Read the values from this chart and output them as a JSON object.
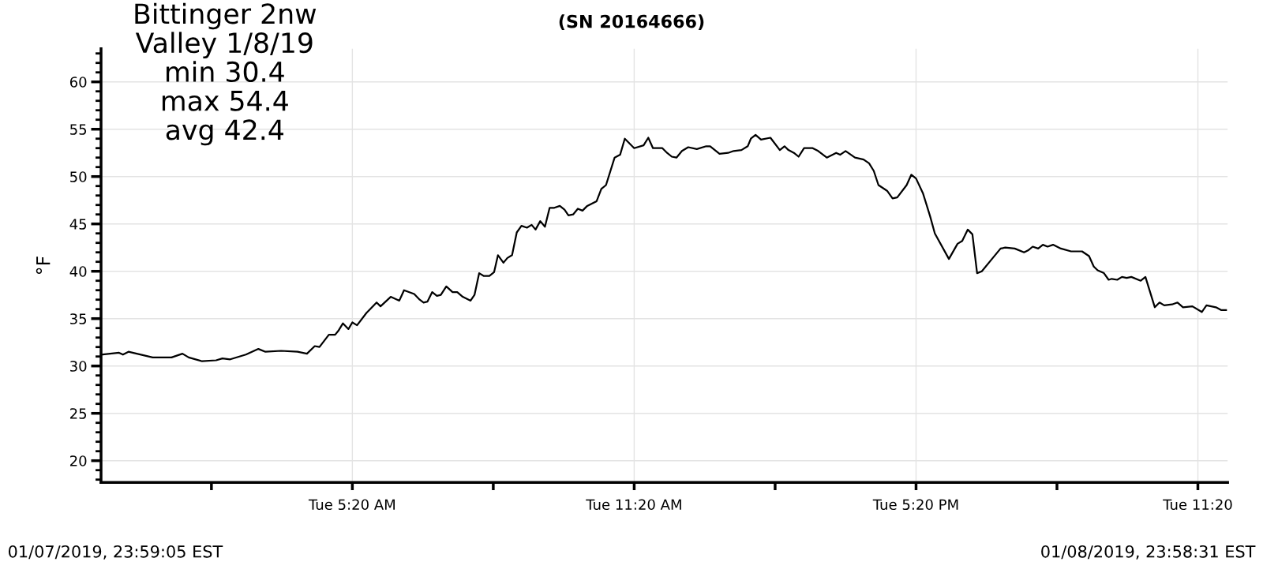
{
  "chart_data": {
    "type": "line",
    "title": "(SN 20164666)",
    "ylabel": "°F",
    "annotations": [
      "Bittinger 2nw\nValley 1/8/19\nmin 30.4\nmax 54.4\navg 42.4",
      "01/07/2019, 23:59:05 EST",
      "01/08/2019, 23:58:31 EST"
    ],
    "series": [
      {
        "color": "#000000",
        "x": [
          "2019-01-07T23:59",
          "2019-01-08T00:22",
          "2019-01-08T00:27",
          "2019-01-08T00:34",
          "2019-01-08T01:05",
          "2019-01-08T01:29",
          "2019-01-08T01:43",
          "2019-01-08T01:51",
          "2019-01-08T02:08",
          "2019-01-08T02:26",
          "2019-01-08T02:34",
          "2019-01-08T02:44",
          "2019-01-08T03:04",
          "2019-01-08T03:20",
          "2019-01-08T03:29",
          "2019-01-08T03:49",
          "2019-01-08T04:10",
          "2019-01-08T04:22",
          "2019-01-08T04:32",
          "2019-01-08T04:38",
          "2019-01-08T04:50",
          "2019-01-08T04:58",
          "2019-01-08T05:02",
          "2019-01-08T05:08",
          "2019-01-08T05:15",
          "2019-01-08T05:20",
          "2019-01-08T05:26",
          "2019-01-08T05:38",
          "2019-01-08T05:51",
          "2019-01-08T05:56",
          "2019-01-08T06:09",
          "2019-01-08T06:20",
          "2019-01-08T06:26",
          "2019-01-08T06:39",
          "2019-01-08T06:46",
          "2019-01-08T06:51",
          "2019-01-08T06:56",
          "2019-01-08T07:02",
          "2019-01-08T07:08",
          "2019-01-08T07:13",
          "2019-01-08T07:20",
          "2019-01-08T07:28",
          "2019-01-08T07:34",
          "2019-01-08T07:41",
          "2019-01-08T07:51",
          "2019-01-08T07:56",
          "2019-01-08T08:02",
          "2019-01-08T08:08",
          "2019-01-08T08:15",
          "2019-01-08T08:21",
          "2019-01-08T08:26",
          "2019-01-08T08:33",
          "2019-01-08T08:38",
          "2019-01-08T08:44",
          "2019-01-08T08:50",
          "2019-01-08T08:56",
          "2019-01-08T09:03",
          "2019-01-08T09:09",
          "2019-01-08T09:14",
          "2019-01-08T09:20",
          "2019-01-08T09:26",
          "2019-01-08T09:32",
          "2019-01-08T09:38",
          "2019-01-08T09:45",
          "2019-01-08T09:51",
          "2019-01-08T09:56",
          "2019-01-08T10:02",
          "2019-01-08T10:08",
          "2019-01-08T10:14",
          "2019-01-08T10:20",
          "2019-01-08T10:32",
          "2019-01-08T10:38",
          "2019-01-08T10:44",
          "2019-01-08T10:55",
          "2019-01-08T11:02",
          "2019-01-08T11:08",
          "2019-01-08T11:20",
          "2019-01-08T11:32",
          "2019-01-08T11:38",
          "2019-01-08T11:44",
          "2019-01-08T11:56",
          "2019-01-08T12:02",
          "2019-01-08T12:08",
          "2019-01-08T12:14",
          "2019-01-08T12:21",
          "2019-01-08T12:29",
          "2019-01-08T12:40",
          "2019-01-08T12:52",
          "2019-01-08T12:57",
          "2019-01-08T13:09",
          "2019-01-08T13:20",
          "2019-01-08T13:27",
          "2019-01-08T13:37",
          "2019-01-08T13:45",
          "2019-01-08T13:49",
          "2019-01-08T13:55",
          "2019-01-08T14:02",
          "2019-01-08T14:14",
          "2019-01-08T14:26",
          "2019-01-08T14:32",
          "2019-01-08T14:37",
          "2019-01-08T14:44",
          "2019-01-08T14:50",
          "2019-01-08T14:57",
          "2019-01-08T15:08",
          "2019-01-08T15:15",
          "2019-01-08T15:26",
          "2019-01-08T15:38",
          "2019-01-08T15:43",
          "2019-01-08T15:50",
          "2019-01-08T16:02",
          "2019-01-08T16:13",
          "2019-01-08T16:20",
          "2019-01-08T16:26",
          "2019-01-08T16:32",
          "2019-01-08T16:43",
          "2019-01-08T16:50",
          "2019-01-08T16:56",
          "2019-01-08T17:08",
          "2019-01-08T17:14",
          "2019-01-08T17:20",
          "2019-01-08T17:29",
          "2019-01-08T17:38",
          "2019-01-08T17:44",
          "2019-01-08T18:02",
          "2019-01-08T18:13",
          "2019-01-08T18:19",
          "2019-01-08T18:26",
          "2019-01-08T18:32",
          "2019-01-08T18:38",
          "2019-01-08T18:44",
          "2019-01-08T18:58",
          "2019-01-08T19:08",
          "2019-01-08T19:14",
          "2019-01-08T19:26",
          "2019-01-08T19:38",
          "2019-01-08T19:43",
          "2019-01-08T19:49",
          "2019-01-08T19:56",
          "2019-01-08T20:02",
          "2019-01-08T20:08",
          "2019-01-08T20:15",
          "2019-01-08T20:25",
          "2019-01-08T20:38",
          "2019-01-08T20:52",
          "2019-01-08T21:01",
          "2019-01-08T21:07",
          "2019-01-08T21:12",
          "2019-01-08T21:20",
          "2019-01-08T21:26",
          "2019-01-08T21:30",
          "2019-01-08T21:37",
          "2019-01-08T21:43",
          "2019-01-08T21:49",
          "2019-01-08T21:55",
          "2019-01-08T22:07",
          "2019-01-08T22:13",
          "2019-01-08T22:25",
          "2019-01-08T22:31",
          "2019-01-08T22:37",
          "2019-01-08T22:47",
          "2019-01-08T22:54",
          "2019-01-08T23:01",
          "2019-01-08T23:13",
          "2019-01-08T23:25",
          "2019-01-08T23:31",
          "2019-01-08T23:43",
          "2019-01-08T23:50",
          "2019-01-08T23:56"
        ],
        "values": [
          31.2,
          31.4,
          31.2,
          31.5,
          30.9,
          30.9,
          31.3,
          30.9,
          30.5,
          30.6,
          30.8,
          30.7,
          31.2,
          31.8,
          31.5,
          31.6,
          31.5,
          31.3,
          32.1,
          32.0,
          33.3,
          33.3,
          33.7,
          34.5,
          33.9,
          34.6,
          34.3,
          35.6,
          36.7,
          36.3,
          37.3,
          36.9,
          38.0,
          37.6,
          37.0,
          36.7,
          36.8,
          37.8,
          37.4,
          37.5,
          38.4,
          37.8,
          37.8,
          37.3,
          36.9,
          37.5,
          39.8,
          39.5,
          39.5,
          39.9,
          41.7,
          40.9,
          41.4,
          41.7,
          44.1,
          44.8,
          44.6,
          44.9,
          44.4,
          45.3,
          44.7,
          46.7,
          46.7,
          46.9,
          46.5,
          45.9,
          46.0,
          46.6,
          46.4,
          46.9,
          47.4,
          48.7,
          49.1,
          52.0,
          52.3,
          54.0,
          53.0,
          53.3,
          54.1,
          53.0,
          53.0,
          52.5,
          52.1,
          52.0,
          52.7,
          53.1,
          52.9,
          53.2,
          53.2,
          52.4,
          52.5,
          52.7,
          52.8,
          53.2,
          54.0,
          54.4,
          53.9,
          54.1,
          52.8,
          53.2,
          52.8,
          52.5,
          52.1,
          53.0,
          53.0,
          52.7,
          52.0,
          52.5,
          52.3,
          52.7,
          52.0,
          51.8,
          51.4,
          50.6,
          49.1,
          48.5,
          47.7,
          47.8,
          49.1,
          50.2,
          49.8,
          48.2,
          45.8,
          44.0,
          41.3,
          42.9,
          43.2,
          44.4,
          43.9,
          39.8,
          40.0,
          41.4,
          42.4,
          42.5,
          42.4,
          42.0,
          42.2,
          42.6,
          42.4,
          42.8,
          42.6,
          42.8,
          42.4,
          42.1,
          42.1,
          41.6,
          40.5,
          40.1,
          39.8,
          39.1,
          39.2,
          39.1,
          39.4,
          39.3,
          39.4,
          39.0,
          39.4,
          36.2,
          36.7,
          36.4,
          36.5,
          36.7,
          36.2,
          36.3,
          35.7,
          36.4,
          36.2,
          35.9,
          35.9
        ]
      }
    ],
    "xlim": [
      "2019-01-07T23:59",
      "2019-01-08T23:58"
    ],
    "xticks": [
      {
        "value": "2019-01-08T02:20",
        "label": null
      },
      {
        "value": "2019-01-08T05:20",
        "label": "Tue 5:20 AM"
      },
      {
        "value": "2019-01-08T08:20",
        "label": null
      },
      {
        "value": "2019-01-08T11:20",
        "label": "Tue 11:20 AM"
      },
      {
        "value": "2019-01-08T14:20",
        "label": null
      },
      {
        "value": "2019-01-08T17:20",
        "label": "Tue 5:20 PM"
      },
      {
        "value": "2019-01-08T20:20",
        "label": null
      },
      {
        "value": "2019-01-08T23:20",
        "label": "Tue 11:20"
      }
    ],
    "ylim": [
      17.7,
      63.5
    ],
    "yticks": [
      {
        "value": 18,
        "label": null
      },
      {
        "value": 19,
        "label": null
      },
      20,
      {
        "value": 21,
        "label": null
      },
      {
        "value": 22,
        "label": null
      },
      {
        "value": 23,
        "label": null
      },
      {
        "value": 24,
        "label": null
      },
      25,
      {
        "value": 26,
        "label": null
      },
      {
        "value": 27,
        "label": null
      },
      {
        "value": 28,
        "label": null
      },
      {
        "value": 29,
        "label": null
      },
      30,
      {
        "value": 31,
        "label": null
      },
      {
        "value": 32,
        "label": null
      },
      {
        "value": 33,
        "label": null
      },
      {
        "value": 34,
        "label": null
      },
      35,
      {
        "value": 36,
        "label": null
      },
      {
        "value": 37,
        "label": null
      },
      {
        "value": 38,
        "label": null
      },
      {
        "value": 39,
        "label": null
      },
      40,
      {
        "value": 41,
        "label": null
      },
      {
        "value": 42,
        "label": null
      },
      {
        "value": 43,
        "label": null
      },
      {
        "value": 44,
        "label": null
      },
      45,
      {
        "value": 46,
        "label": null
      },
      {
        "value": 47,
        "label": null
      },
      {
        "value": 48,
        "label": null
      },
      {
        "value": 49,
        "label": null
      },
      50,
      {
        "value": 51,
        "label": null
      },
      {
        "value": 52,
        "label": null
      },
      {
        "value": 53,
        "label": null
      },
      {
        "value": 54,
        "label": null
      },
      55,
      {
        "value": 56,
        "label": null
      },
      {
        "value": 57,
        "label": null
      },
      {
        "value": 58,
        "label": null
      },
      {
        "value": 59,
        "label": null
      },
      60,
      {
        "value": 61,
        "label": null
      },
      {
        "value": 62,
        "label": null
      },
      {
        "value": 63,
        "label": null
      }
    ],
    "grid": true,
    "marker": "none",
    "line_style": "solid"
  }
}
